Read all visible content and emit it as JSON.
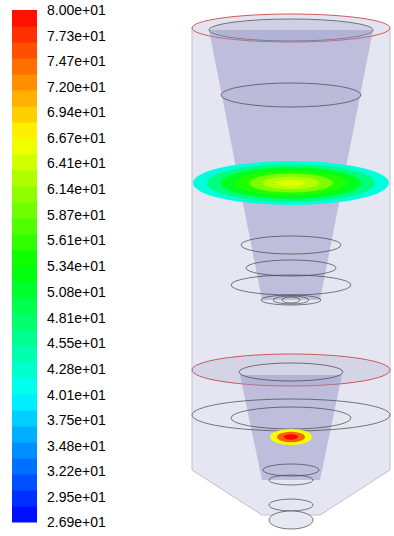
{
  "chart_data": {
    "type": "contour",
    "colorbar": {
      "range": [
        26.9,
        80
      ],
      "ticks": [
        {
          "value": 80,
          "label": "8.00e+01"
        },
        {
          "value": 77.3,
          "label": "7.73e+01"
        },
        {
          "value": 74.7,
          "label": "7.47e+01"
        },
        {
          "value": 72.0,
          "label": "7.20e+01"
        },
        {
          "value": 69.4,
          "label": "6.94e+01"
        },
        {
          "value": 66.7,
          "label": "6.67e+01"
        },
        {
          "value": 64.1,
          "label": "6.41e+01"
        },
        {
          "value": 61.4,
          "label": "6.14e+01"
        },
        {
          "value": 58.7,
          "label": "5.87e+01"
        },
        {
          "value": 56.1,
          "label": "5.61e+01"
        },
        {
          "value": 53.4,
          "label": "5.34e+01"
        },
        {
          "value": 50.8,
          "label": "5.08e+01"
        },
        {
          "value": 48.1,
          "label": "4.81e+01"
        },
        {
          "value": 45.5,
          "label": "4.55e+01"
        },
        {
          "value": 42.8,
          "label": "4.28e+01"
        },
        {
          "value": 40.1,
          "label": "4.01e+01"
        },
        {
          "value": 37.5,
          "label": "3.75e+01"
        },
        {
          "value": 34.8,
          "label": "3.48e+01"
        },
        {
          "value": 32.2,
          "label": "3.22e+01"
        },
        {
          "value": 29.5,
          "label": "2.95e+01"
        },
        {
          "value": 26.9,
          "label": "2.69e+01"
        }
      ]
    },
    "surfaces": [
      {
        "values": [
          42,
          47,
          52,
          55,
          60,
          63,
          65
        ]
      },
      {
        "values": [
          66,
          75,
          80
        ]
      }
    ]
  }
}
